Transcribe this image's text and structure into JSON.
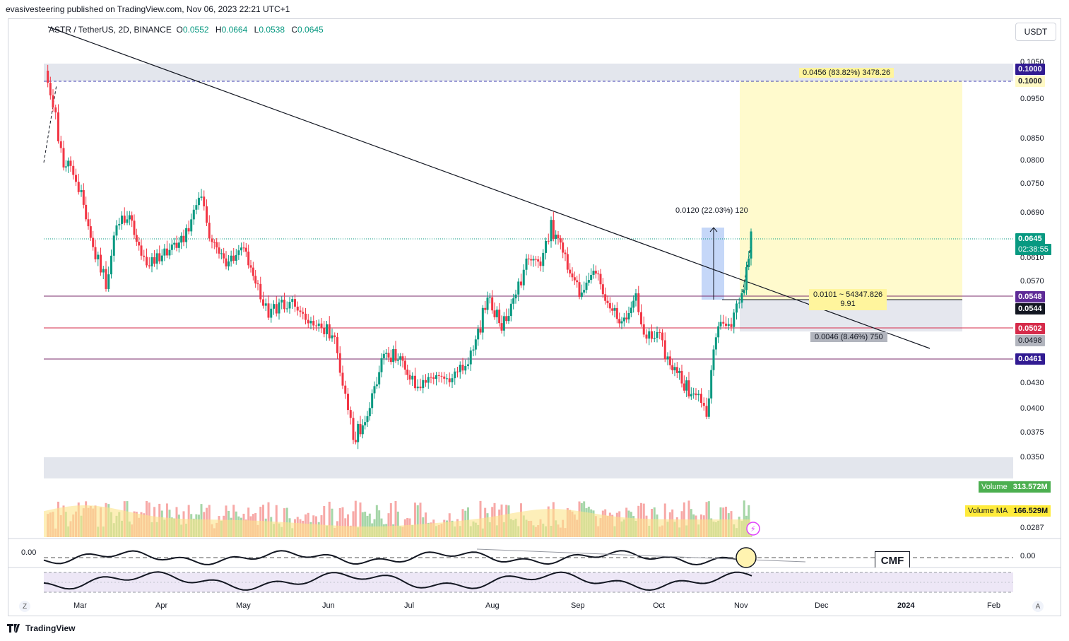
{
  "header": {
    "published": "evasivesteering published on TradingView.com, Nov 06, 2023 22:21 UTC+1"
  },
  "legend": {
    "symbol": "ASTR / TetherUS, 2D, BINANCE",
    "o_key": "O",
    "o_val": "0.0552",
    "h_key": "H",
    "h_val": "0.0664",
    "l_key": "L",
    "l_val": "0.0538",
    "c_key": "C",
    "c_val": "0.0645"
  },
  "currency_button": "USDT",
  "price_axis": {
    "ticks": [
      "0.1050",
      "0.0950",
      "0.0850",
      "0.0800",
      "0.0750",
      "0.0690",
      "0.0610",
      "0.0570",
      "0.0430",
      "0.0400",
      "0.0375",
      "0.0350",
      "0.0287"
    ],
    "labels": {
      "top_level": "0.1000",
      "top_level_alt": "0.1000",
      "last_price": "0.0645",
      "countdown": "02:38:55",
      "level_0548": "0.0548",
      "level_0544": "0.0544",
      "level_0502": "0.0502",
      "level_0498": "0.0498",
      "level_0461": "0.0461"
    }
  },
  "time_axis": {
    "labels": [
      "Mar",
      "Apr",
      "May",
      "Jun",
      "Jul",
      "Aug",
      "Sep",
      "Oct",
      "Nov",
      "Dec",
      "2024",
      "Feb"
    ]
  },
  "annotations": {
    "target": "0.0456 (83.82%) 3478.26",
    "range_top": "0.0120 (22.03%) 120",
    "ratio_line1": "0.0101 ~ 54347.826",
    "ratio_line2": "9.91",
    "stop": "0.0046 (8.46%) 750"
  },
  "volume": {
    "label": "Volume",
    "value": "313.572M",
    "ma_label": "Volume MA",
    "ma_value": "166.529M"
  },
  "indicator": {
    "left_value": "0.00",
    "right_value": "0.00",
    "cmf_label": "CMF"
  },
  "corners": {
    "z": "Z",
    "a": "A"
  },
  "footer": {
    "brand": "TradingView"
  },
  "colors": {
    "up": "#089981",
    "down": "#f23645",
    "purple": "#7e57c2",
    "red_line": "#b2223c",
    "yellow": "#fff9c4",
    "grey_zone": "#e0e3eb"
  }
}
